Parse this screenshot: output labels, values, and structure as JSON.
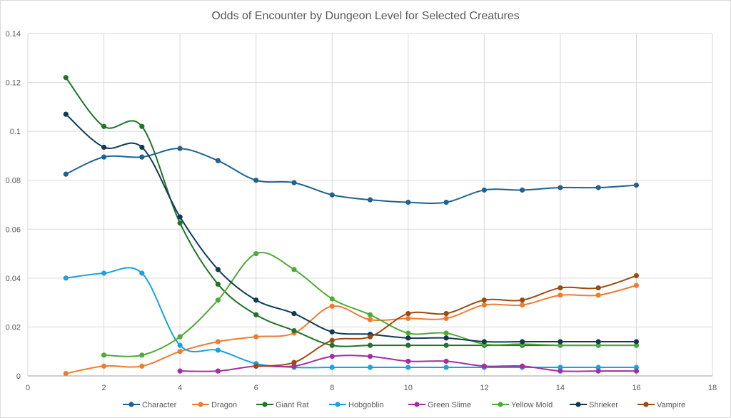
{
  "chart_data": {
    "type": "line",
    "title": "Odds of Encounter by Dungeon Level for Selected Creatures",
    "xlabel": "",
    "ylabel": "",
    "xlim": [
      0,
      18
    ],
    "ylim": [
      0,
      0.14
    ],
    "x_ticks": [
      "0",
      "2",
      "4",
      "6",
      "8",
      "10",
      "12",
      "14",
      "16",
      "18"
    ],
    "y_ticks": [
      "0",
      "0.02",
      "0.04",
      "0.06",
      "0.08",
      "0.1",
      "0.12",
      "0.14"
    ],
    "grid": true,
    "smoothed": true,
    "legend_position": "bottom",
    "series": [
      {
        "name": "Character",
        "color": "#1f6391",
        "x": [
          1,
          2,
          3,
          4,
          5,
          6,
          7,
          8,
          9,
          10,
          11,
          12,
          13,
          14,
          15,
          16
        ],
        "values": [
          0.0825,
          0.0895,
          0.0895,
          0.093,
          0.088,
          0.08,
          0.079,
          0.074,
          0.072,
          0.071,
          0.071,
          0.076,
          0.076,
          0.077,
          0.077,
          0.078
        ]
      },
      {
        "name": "Dragon",
        "color": "#ed7d31",
        "x": [
          1,
          2,
          3,
          4,
          5,
          6,
          7,
          8,
          9,
          10,
          11,
          12,
          13,
          14,
          15,
          16
        ],
        "values": [
          0.001,
          0.004,
          0.004,
          0.01,
          0.014,
          0.016,
          0.0175,
          0.0285,
          0.023,
          0.0235,
          0.0235,
          0.029,
          0.029,
          0.033,
          0.033,
          0.037
        ]
      },
      {
        "name": "Giant Rat",
        "color": "#1e7526",
        "x": [
          1,
          2,
          3,
          4,
          5,
          6,
          7,
          8,
          9,
          10,
          11,
          12,
          13,
          14,
          15,
          16
        ],
        "values": [
          0.122,
          0.102,
          0.102,
          0.0625,
          0.0375,
          0.025,
          0.0185,
          0.0125,
          0.0125,
          0.0125,
          0.0125,
          0.0125,
          0.0125,
          0.0125,
          0.0125,
          0.0125
        ]
      },
      {
        "name": "Hobgoblin",
        "color": "#1aa3dc",
        "x": [
          1,
          2,
          3,
          4,
          5,
          6,
          7,
          8,
          9,
          10,
          11,
          12,
          13,
          14,
          15,
          16
        ],
        "values": [
          0.04,
          0.042,
          0.042,
          0.0125,
          0.0105,
          0.005,
          0.0035,
          0.0035,
          0.0035,
          0.0035,
          0.0035,
          0.0035,
          0.0035,
          0.0035,
          0.0035,
          0.0035
        ]
      },
      {
        "name": "Green Slime",
        "color": "#a3309f",
        "x": [
          4,
          5,
          6,
          7,
          8,
          9,
          10,
          11,
          12,
          13,
          14,
          15,
          16
        ],
        "values": [
          0.002,
          0.002,
          0.004,
          0.004,
          0.008,
          0.008,
          0.006,
          0.006,
          0.004,
          0.004,
          0.002,
          0.002,
          0.002
        ]
      },
      {
        "name": "Yellow Mold",
        "color": "#4eab35",
        "x": [
          2,
          3,
          4,
          5,
          6,
          7,
          8,
          9,
          10,
          11,
          12,
          13,
          14,
          15,
          16
        ],
        "values": [
          0.0085,
          0.0085,
          0.016,
          0.031,
          0.05,
          0.0435,
          0.0315,
          0.025,
          0.0175,
          0.0175,
          0.013,
          0.013,
          0.0125,
          0.0125,
          0.0125
        ]
      },
      {
        "name": "Shrieker",
        "color": "#0f3a55",
        "x": [
          1,
          2,
          3,
          4,
          5,
          6,
          7,
          8,
          9,
          10,
          11,
          12,
          13,
          14,
          15,
          16
        ],
        "values": [
          0.107,
          0.0935,
          0.0935,
          0.065,
          0.0435,
          0.031,
          0.0255,
          0.018,
          0.017,
          0.0155,
          0.0155,
          0.014,
          0.014,
          0.014,
          0.014,
          0.014
        ]
      },
      {
        "name": "Vampire",
        "color": "#9c4a12",
        "x": [
          6,
          7,
          8,
          9,
          10,
          11,
          12,
          13,
          14,
          15,
          16
        ],
        "values": [
          0.004,
          0.0055,
          0.0145,
          0.016,
          0.0255,
          0.0255,
          0.031,
          0.031,
          0.036,
          0.036,
          0.041
        ]
      }
    ]
  }
}
